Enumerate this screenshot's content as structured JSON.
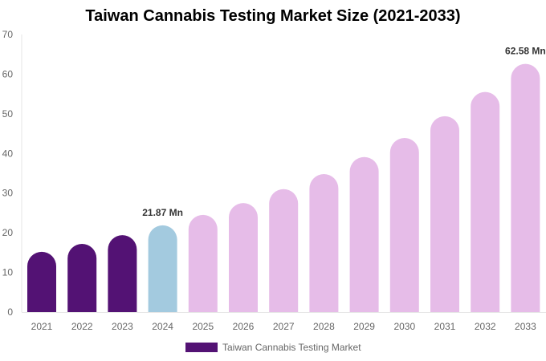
{
  "chart_data": {
    "type": "bar",
    "title": "Taiwan Cannabis Testing Market Size (2021-2033)",
    "categories": [
      "2021",
      "2022",
      "2023",
      "2024",
      "2025",
      "2026",
      "2027",
      "2028",
      "2029",
      "2030",
      "2031",
      "2032",
      "2033"
    ],
    "series": [
      {
        "name": "Taiwan Cannabis Testing Market",
        "values": [
          15.2,
          17.2,
          19.4,
          21.87,
          24.5,
          27.5,
          31.0,
          34.8,
          39.1,
          43.9,
          49.4,
          55.5,
          62.58
        ]
      }
    ],
    "data_labels": {
      "3": "21.87 Mn",
      "12": "62.58 Mn"
    },
    "ylim": [
      0,
      70
    ],
    "yticks": [
      0,
      10,
      20,
      30,
      40,
      50,
      60,
      70
    ],
    "grid": false,
    "legend": "bottom",
    "colors": {
      "historical": "#531274",
      "base_year": "#a3cadf",
      "forecast": "#e6bce8"
    }
  }
}
